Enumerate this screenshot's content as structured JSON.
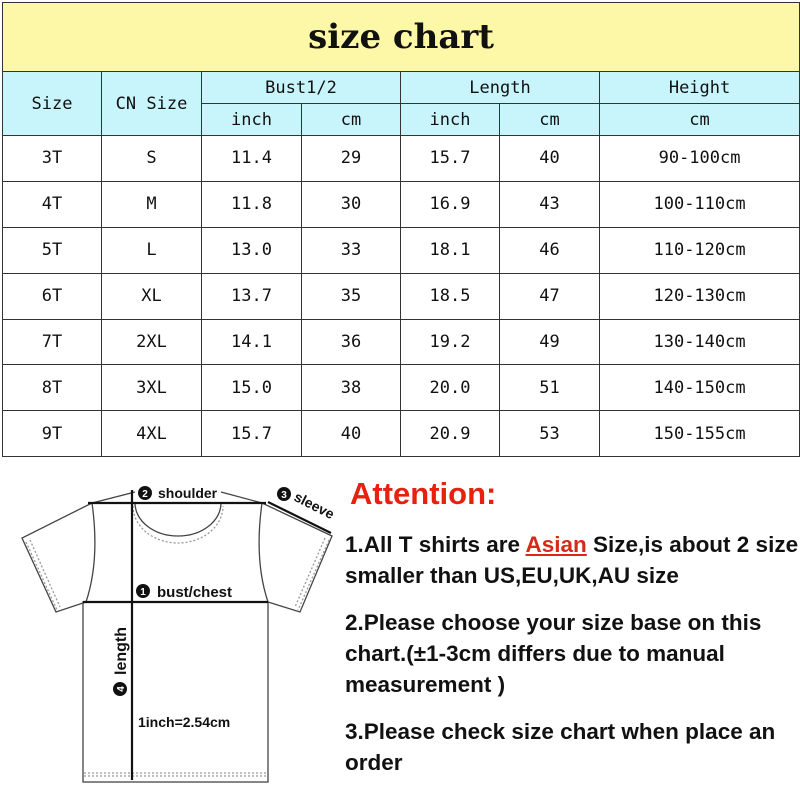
{
  "title": "size chart",
  "headers": {
    "size": "Size",
    "cn_size": "CN Size",
    "bust": "Bust1/2",
    "length": "Length",
    "height": "Height",
    "inch": "inch",
    "cm": "cm"
  },
  "rows": [
    {
      "size": "3T",
      "cn": "S",
      "bust_in": "11.4",
      "bust_cm": "29",
      "len_in": "15.7",
      "len_cm": "40",
      "height": "90-100cm"
    },
    {
      "size": "4T",
      "cn": "M",
      "bust_in": "11.8",
      "bust_cm": "30",
      "len_in": "16.9",
      "len_cm": "43",
      "height": "100-110cm"
    },
    {
      "size": "5T",
      "cn": "L",
      "bust_in": "13.0",
      "bust_cm": "33",
      "len_in": "18.1",
      "len_cm": "46",
      "height": "110-120cm"
    },
    {
      "size": "6T",
      "cn": "XL",
      "bust_in": "13.7",
      "bust_cm": "35",
      "len_in": "18.5",
      "len_cm": "47",
      "height": "120-130cm"
    },
    {
      "size": "7T",
      "cn": "2XL",
      "bust_in": "14.1",
      "bust_cm": "36",
      "len_in": "19.2",
      "len_cm": "49",
      "height": "130-140cm"
    },
    {
      "size": "8T",
      "cn": "3XL",
      "bust_in": "15.0",
      "bust_cm": "38",
      "len_in": "20.0",
      "len_cm": "51",
      "height": "140-150cm"
    },
    {
      "size": "9T",
      "cn": "4XL",
      "bust_in": "15.7",
      "bust_cm": "40",
      "len_in": "20.9",
      "len_cm": "53",
      "height": "150-155cm"
    }
  ],
  "diagram": {
    "shoulder": "shoulder",
    "sleeve": "sleeve",
    "bust": "bust/chest",
    "length": "length",
    "conversion": "1inch=2.54cm",
    "n1": "1",
    "n2": "2",
    "n3": "3",
    "n4": "4"
  },
  "attention": {
    "heading": "Attention:",
    "note1_a": "1.All T shirts are ",
    "note1_asian": "Asian",
    "note1_b": " Size,is about 2 size smaller than US,EU,UK,AU size",
    "note2": "2.Please choose your size base on this chart.(±1-3cm differs due to manual measurement )",
    "note3": "3.Please check size chart when place an order"
  },
  "colors": {
    "title_bg": "#fdf8a8",
    "header_bg": "#c8f4fb",
    "attention": "#e8210f"
  }
}
